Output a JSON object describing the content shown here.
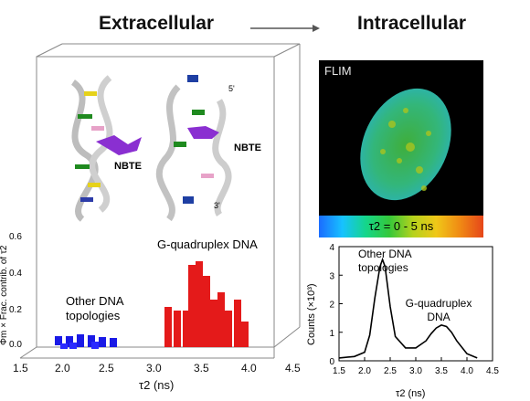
{
  "header": {
    "left_title": "Extracellular",
    "right_title": "Intracellular"
  },
  "left_panel": {
    "labels": {
      "ligand_left": "NBTE",
      "ligand_right": "NBTE",
      "five_prime": "5'",
      "three_prime": "3'",
      "gq_dna": "G-quadruplex DNA",
      "other_dna_line1": "Other DNA",
      "other_dna_line2": "topologies"
    },
    "y_axis_label": "Φm × Frac. contrib. of τ2",
    "x_axis_label": "τ2 (ns)",
    "x_ticks": [
      "1.5",
      "2.0",
      "2.5",
      "3.0",
      "3.5",
      "4.0",
      "4.5"
    ],
    "y_ticks": [
      "0.0",
      "0.2",
      "0.4",
      "0.6"
    ],
    "colors": {
      "other_dna": "#1a1ae6",
      "gq_dna": "#e41a1a"
    }
  },
  "flim_panel": {
    "title": "FLIM",
    "scale_label": "τ2 = 0 - 5 ns"
  },
  "chart_data": {
    "type": "line",
    "x": [
      1.5,
      1.8,
      2.0,
      2.1,
      2.2,
      2.3,
      2.35,
      2.4,
      2.5,
      2.6,
      2.8,
      3.0,
      3.2,
      3.3,
      3.4,
      3.5,
      3.6,
      3.7,
      3.8,
      4.0,
      4.2
    ],
    "series": [
      {
        "values": [
          0.1,
          0.15,
          0.3,
          0.9,
          2.2,
          3.3,
          3.55,
          3.3,
          1.9,
          0.85,
          0.45,
          0.45,
          0.7,
          0.95,
          1.15,
          1.25,
          1.2,
          1.0,
          0.7,
          0.25,
          0.1
        ]
      }
    ],
    "xlabel": "τ2 (ns)",
    "ylabel": "Counts (×10³)",
    "xlim": [
      1.5,
      4.5
    ],
    "ylim": [
      0,
      4
    ],
    "x_ticks": [
      "1.5",
      "2.0",
      "2.5",
      "3.0",
      "3.5",
      "4.0",
      "4.5"
    ],
    "y_ticks": [
      "0",
      "1",
      "2",
      "3",
      "4"
    ],
    "annotations": {
      "other_line1": "Other DNA",
      "other_line2": "topologies",
      "gq_line1": "G-quadruplex",
      "gq_line2": "DNA"
    }
  }
}
